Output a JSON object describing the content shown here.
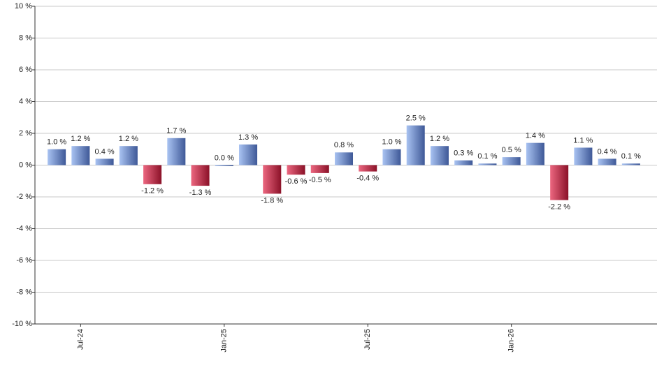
{
  "chart_data": {
    "type": "bar",
    "categories": [
      null,
      "Jul-24",
      null,
      null,
      null,
      null,
      null,
      "Jan-25",
      null,
      null,
      null,
      null,
      null,
      "Jul-25",
      null,
      null,
      null,
      null,
      null,
      "Jan-26",
      null,
      null,
      null,
      null,
      null
    ],
    "values": [
      1.0,
      1.2,
      0.4,
      1.2,
      -1.2,
      1.7,
      -1.3,
      0.0,
      1.3,
      -1.8,
      -0.6,
      -0.5,
      0.8,
      -0.4,
      1.0,
      2.5,
      1.2,
      0.3,
      0.1,
      0.5,
      1.4,
      -2.2,
      1.1,
      0.4,
      0.1
    ],
    "value_labels": [
      "1.0 %",
      "1.2 %",
      "0.4 %",
      "1.2 %",
      "-1.2 %",
      "1.7 %",
      "-1.3 %",
      "0.0 %",
      "1.3 %",
      "-1.8 %",
      "-0.6 %",
      "-0.5 %",
      "0.8 %",
      "-0.4 %",
      "1.0 %",
      "2.5 %",
      "1.2 %",
      "0.3 %",
      "0.1 %",
      "0.5 %",
      "1.4 %",
      "-2.2 %",
      "1.1 %",
      "0.4 %",
      "0.1 %"
    ],
    "colors": {
      "positive": [
        "#a9c3f2",
        "#3e5897"
      ],
      "negative": [
        "#ec6780",
        "#8b1128"
      ]
    },
    "ylim": [
      -10,
      10
    ],
    "yticks": [
      {
        "value": -10,
        "label": "-10 %"
      },
      {
        "value": -8,
        "label": "-8 %"
      },
      {
        "value": -6,
        "label": "-6 %"
      },
      {
        "value": -4,
        "label": "-4 %"
      },
      {
        "value": -2,
        "label": "-2 %"
      },
      {
        "value": 0,
        "label": "0 %"
      },
      {
        "value": 2,
        "label": "2 %"
      },
      {
        "value": 4,
        "label": "4 %"
      },
      {
        "value": 6,
        "label": "6 %"
      },
      {
        "value": 8,
        "label": "8 %"
      },
      {
        "value": 10,
        "label": "10 %"
      }
    ],
    "grid": true
  }
}
